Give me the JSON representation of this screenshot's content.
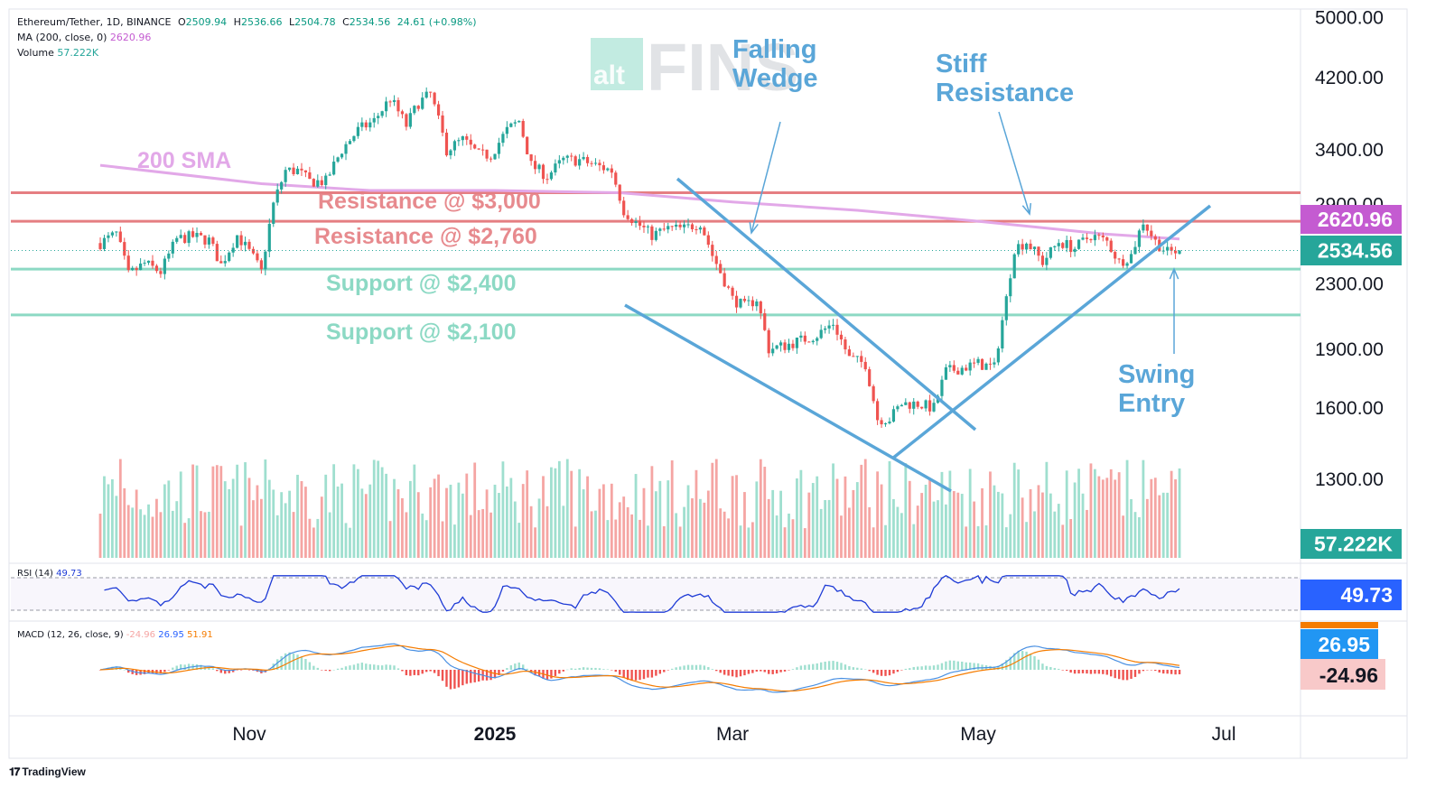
{
  "header": {
    "symbol": "Ethereum/Tether, 1D, BINANCE",
    "open_label": "O",
    "open": "2509.94",
    "high_label": "H",
    "high": "2536.66",
    "low_label": "L",
    "low": "2504.78",
    "close_label": "C",
    "close": "2534.56",
    "change": "24.61 (+0.98%)",
    "ma_label": "MA (200, close, 0)",
    "ma_value": "2620.96",
    "volume_label": "Volume",
    "volume_value": "57.222K"
  },
  "watermark": {
    "logo_small": "alt",
    "logo_big": "FINS"
  },
  "branding": "TradingView",
  "colors": {
    "up": "#26a69a",
    "down": "#ef5350",
    "up_vol": "#9fdfcf",
    "down_vol": "#f5a5a3",
    "sma": "#e2a8e8",
    "resistance": "#e57e82",
    "support": "#8cd9c4",
    "annotation": "#5aa6d8",
    "rsi": "#1e3bd6",
    "macd": "#4a90e2",
    "signal": "#f57c00"
  },
  "annotations": {
    "sma_label": "200 SMA",
    "resistance_3000": "Resistance @ $3,000",
    "resistance_2760": "Resistance @ $2,760",
    "support_2400": "Support @ $2,400",
    "support_2100": "Support @ $2,100",
    "falling_wedge_1": "Falling",
    "falling_wedge_2": "Wedge",
    "stiff_1": "Stiff",
    "stiff_2": "Resistance",
    "swing_1": "Swing",
    "swing_2": "Entry"
  },
  "price_badges": {
    "sma": "2620.96",
    "last": "2534.56",
    "volume": "57.222K",
    "rsi": "49.73",
    "macd": "26.95",
    "hist": "-24.96"
  },
  "indicators": {
    "rsi_label": "RSI (14)",
    "rsi_value": "49.73",
    "macd_label": "MACD (12, 26, close, 9)",
    "macd_hist": "-24.96",
    "macd_line": "26.95",
    "macd_signal": "51.91"
  },
  "chart_data": {
    "type": "candlestick",
    "scale": "log",
    "y_ticks": [
      1300,
      1600,
      1900,
      2300,
      2900,
      3400,
      4200,
      5000
    ],
    "y_tick_labels": [
      "1300.00",
      "1600.00",
      "1900.00",
      "2300.00",
      "2900.00",
      "3400.00",
      "4200.00",
      "5000.00"
    ],
    "x_ticks": [
      "Nov",
      "2025",
      "Mar",
      "May",
      "Jul"
    ],
    "horizontal_levels": [
      {
        "name": "Resistance @ $3,000",
        "price": 3000
      },
      {
        "name": "Resistance @ $2,760",
        "price": 2760
      },
      {
        "name": "Support @ $2,400",
        "price": 2400
      },
      {
        "name": "Support @ $2,100",
        "price": 2100
      }
    ],
    "anchor_closes": [
      [
        "2024-09-25",
        2590
      ],
      [
        "2024-09-29",
        2660
      ],
      [
        "2024-10-02",
        2360
      ],
      [
        "2024-10-06",
        2440
      ],
      [
        "2024-10-10",
        2380
      ],
      [
        "2024-10-14",
        2620
      ],
      [
        "2024-10-18",
        2640
      ],
      [
        "2024-10-22",
        2610
      ],
      [
        "2024-10-25",
        2430
      ],
      [
        "2024-10-29",
        2650
      ],
      [
        "2024-11-02",
        2480
      ],
      [
        "2024-11-04",
        2380
      ],
      [
        "2024-11-07",
        2900
      ],
      [
        "2024-11-10",
        3200
      ],
      [
        "2024-11-13",
        3200
      ],
      [
        "2024-11-16",
        3100
      ],
      [
        "2024-11-20",
        3100
      ],
      [
        "2024-11-24",
        3400
      ],
      [
        "2024-11-28",
        3600
      ],
      [
        "2024-12-02",
        3700
      ],
      [
        "2024-12-06",
        3950
      ],
      [
        "2024-12-10",
        3650
      ],
      [
        "2024-12-13",
        3900
      ],
      [
        "2024-12-16",
        4000
      ],
      [
        "2024-12-20",
        3400
      ],
      [
        "2024-12-24",
        3500
      ],
      [
        "2024-12-28",
        3350
      ],
      [
        "2024-12-31",
        3350
      ],
      [
        "2025-01-04",
        3600
      ],
      [
        "2025-01-07",
        3700
      ],
      [
        "2025-01-10",
        3250
      ],
      [
        "2025-01-14",
        3150
      ],
      [
        "2025-01-18",
        3300
      ],
      [
        "2025-01-22",
        3300
      ],
      [
        "2025-01-26",
        3250
      ],
      [
        "2025-01-30",
        3200
      ],
      [
        "2025-02-02",
        2850
      ],
      [
        "2025-02-05",
        2750
      ],
      [
        "2025-02-09",
        2650
      ],
      [
        "2025-02-13",
        2700
      ],
      [
        "2025-02-17",
        2700
      ],
      [
        "2025-02-21",
        2750
      ],
      [
        "2025-02-24",
        2500
      ],
      [
        "2025-02-27",
        2320
      ],
      [
        "2025-03-01",
        2200
      ],
      [
        "2025-03-04",
        2150
      ],
      [
        "2025-03-07",
        2200
      ],
      [
        "2025-03-10",
        1900
      ],
      [
        "2025-03-14",
        1920
      ],
      [
        "2025-03-18",
        1950
      ],
      [
        "2025-03-22",
        1980
      ],
      [
        "2025-03-26",
        2050
      ],
      [
        "2025-03-30",
        1850
      ],
      [
        "2025-04-03",
        1820
      ],
      [
        "2025-04-06",
        1550
      ],
      [
        "2025-04-09",
        1550
      ],
      [
        "2025-04-12",
        1620
      ],
      [
        "2025-04-16",
        1620
      ],
      [
        "2025-04-20",
        1600
      ],
      [
        "2025-04-23",
        1780
      ],
      [
        "2025-04-27",
        1800
      ],
      [
        "2025-05-01",
        1820
      ],
      [
        "2025-05-05",
        1800
      ],
      [
        "2025-05-08",
        2200
      ],
      [
        "2025-05-10",
        2550
      ],
      [
        "2025-05-13",
        2600
      ],
      [
        "2025-05-17",
        2450
      ],
      [
        "2025-05-21",
        2600
      ],
      [
        "2025-05-25",
        2550
      ],
      [
        "2025-05-29",
        2650
      ],
      [
        "2025-06-02",
        2600
      ],
      [
        "2025-06-05",
        2450
      ],
      [
        "2025-06-08",
        2500
      ],
      [
        "2025-06-11",
        2760
      ],
      [
        "2025-06-14",
        2600
      ],
      [
        "2025-06-17",
        2520
      ],
      [
        "2025-06-20",
        2534.56
      ]
    ],
    "sma_200_anchors": [
      [
        "2024-09-25",
        3250
      ],
      [
        "2024-11-04",
        3080
      ],
      [
        "2024-12-01",
        3020
      ],
      [
        "2025-01-01",
        3020
      ],
      [
        "2025-02-01",
        3000
      ],
      [
        "2025-03-01",
        2920
      ],
      [
        "2025-04-01",
        2850
      ],
      [
        "2025-05-01",
        2760
      ],
      [
        "2025-06-01",
        2660
      ],
      [
        "2025-06-20",
        2620.96
      ]
    ],
    "indicator_values": {
      "rsi": 49.73,
      "macd": 26.95,
      "signal": 51.91,
      "histogram": -24.96,
      "volume": "57.222K"
    }
  }
}
